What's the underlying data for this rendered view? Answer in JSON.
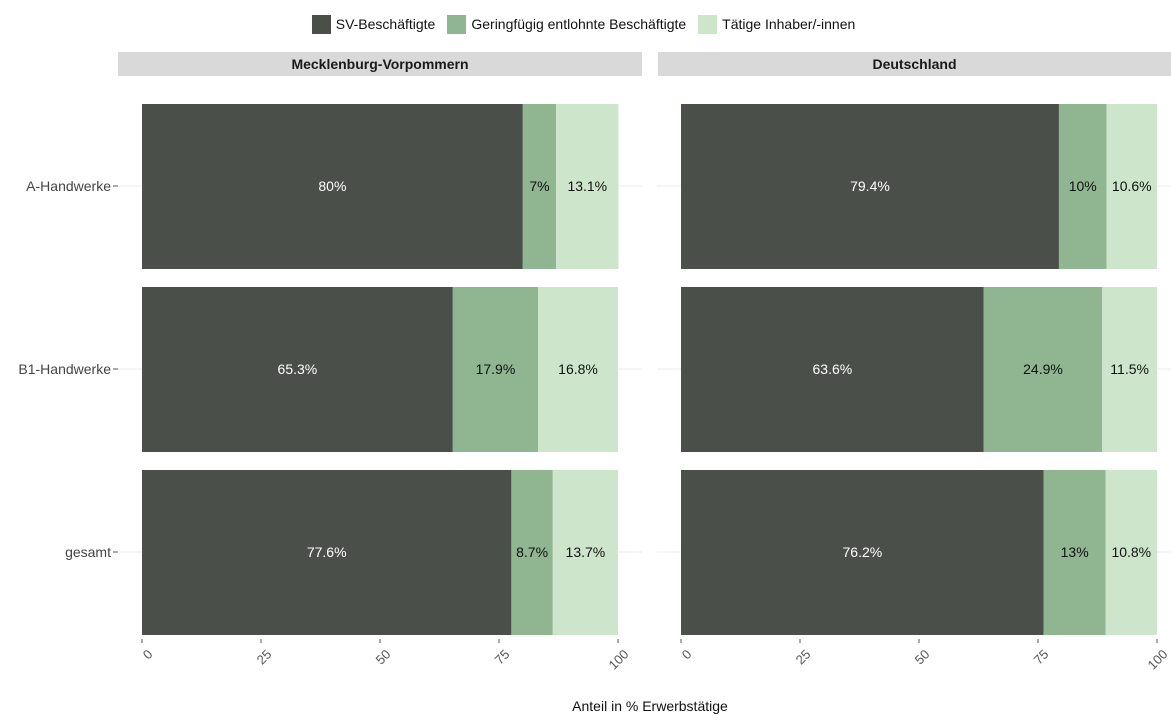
{
  "chart_data": {
    "type": "bar",
    "orientation": "horizontal",
    "stacked": true,
    "legend_position": "top",
    "xlabel": "Anteil in % Erwerbstätige",
    "xlim": [
      0,
      100
    ],
    "xticks": [
      "0",
      "25",
      "50",
      "75",
      "100"
    ],
    "categories": [
      "A-Handwerke",
      "B1-Handwerke",
      "gesamt"
    ],
    "series_meta": [
      {
        "name": "SV-Beschäftigte",
        "color": "#4b4f49",
        "label_color": "#ffffff"
      },
      {
        "name": "Geringfügig entlohnte Beschäftigte",
        "color": "#8fb591",
        "label_color": "#111111"
      },
      {
        "name": "Tätige Inhaber/-innen",
        "color": "#cde6cb",
        "label_color": "#111111"
      }
    ],
    "panels": [
      {
        "title": "Mecklenburg-Vorpommern",
        "values": [
          [
            80,
            7,
            13.1
          ],
          [
            65.3,
            17.9,
            16.8
          ],
          [
            77.6,
            8.7,
            13.7
          ]
        ],
        "labels": [
          [
            "80%",
            "7%",
            "13.1%"
          ],
          [
            "65.3%",
            "17.9%",
            "16.8%"
          ],
          [
            "77.6%",
            "8.7%",
            "13.7%"
          ]
        ]
      },
      {
        "title": "Deutschland",
        "values": [
          [
            79.4,
            10,
            10.6
          ],
          [
            63.6,
            24.9,
            11.5
          ],
          [
            76.2,
            13,
            10.8
          ]
        ],
        "labels": [
          [
            "79.4%",
            "10%",
            "10.6%"
          ],
          [
            "63.6%",
            "24.9%",
            "11.5%"
          ],
          [
            "76.2%",
            "13%",
            "10.8%"
          ]
        ]
      }
    ]
  }
}
